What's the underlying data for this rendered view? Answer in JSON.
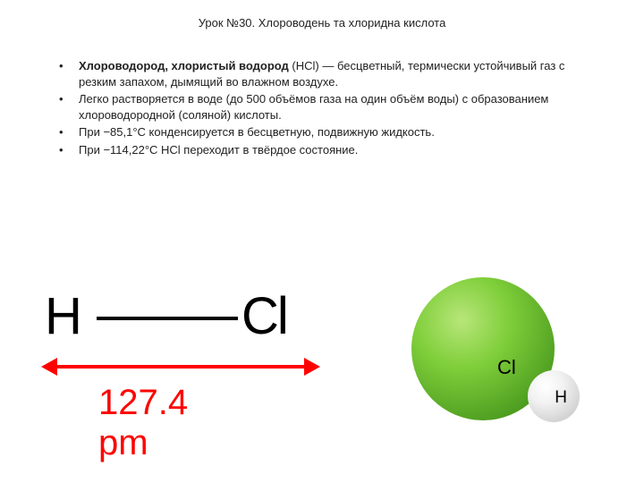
{
  "title": "Урок №30. Хлороводень та хлоридна кислота",
  "bullets": {
    "b1_bold": "Хлороводород, хлористый водород",
    "b1_rest": " (HCl) — бесцветный, термически устойчивый газ с резким запахом, дымящий во влажном воздухе.",
    "b2": "Легко растворяется в воде (до 500 объёмов газа на один объём воды) с образованием хлороводородной (соляной) кислоты.",
    "b3": "При −85,1°C конденсируется в бесцветную, подвижную жидкость.",
    "b4": "При −114,22°C HCl переходит в твёрдое состояние."
  },
  "structural": {
    "atom1": "H",
    "atom2": "Cl",
    "bond_length_label": "127.4 pm",
    "arrow_color": "#ff0000",
    "text_color": "#ff0000"
  },
  "molecule3d": {
    "cl_label": "Cl",
    "h_label": "H",
    "cl_color": "#7fce3a",
    "h_color": "#e8e8e8"
  }
}
